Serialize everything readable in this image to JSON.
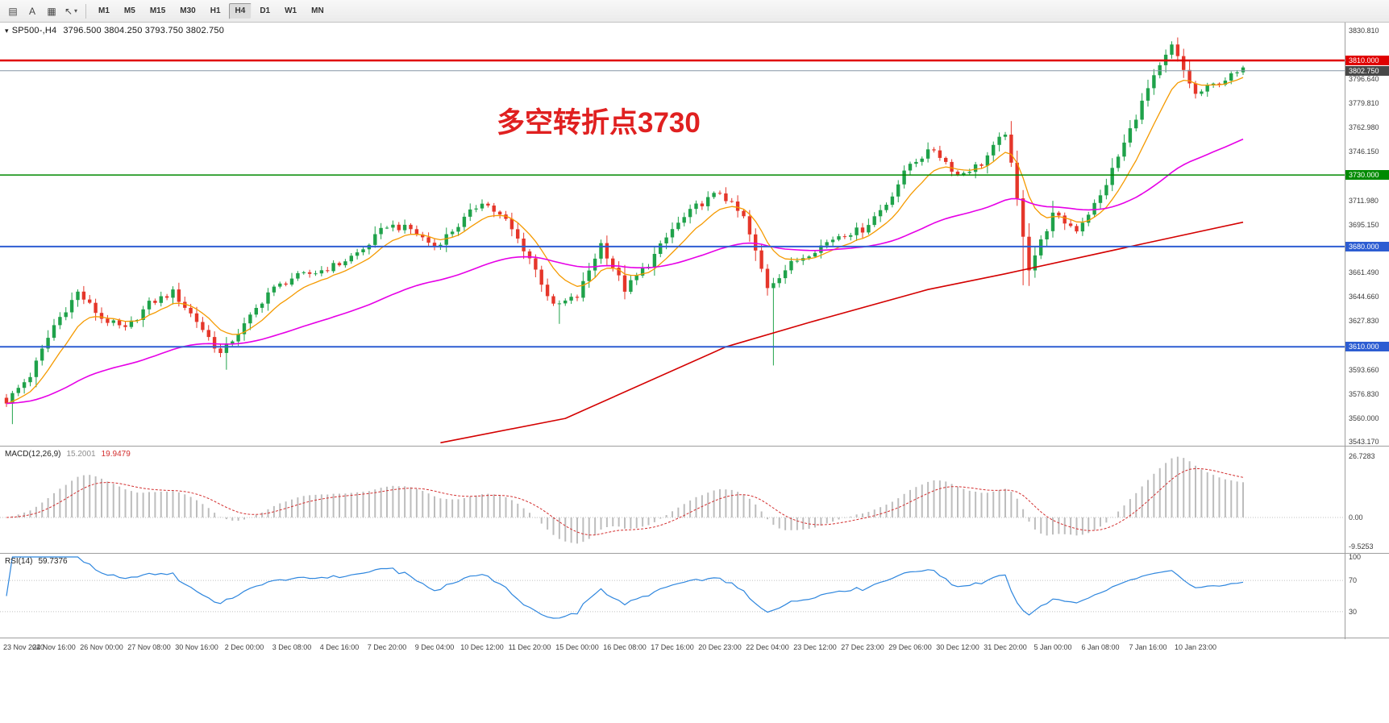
{
  "toolbar": {
    "icons": [
      {
        "name": "chart-list-icon",
        "glyph": "▤"
      },
      {
        "name": "text-tool-icon",
        "glyph": "A"
      },
      {
        "name": "chart-frame-icon",
        "glyph": "▦"
      },
      {
        "name": "cursor-tool-icon",
        "glyph": "↖",
        "caret": "▾"
      }
    ],
    "timeframes": [
      "M1",
      "M5",
      "M15",
      "M30",
      "H1",
      "H4",
      "D1",
      "W1",
      "MN"
    ],
    "active_timeframe": "H4"
  },
  "header": {
    "expander": "▾",
    "symbol": "SP500-,H4",
    "quote": "3796.500 3804.250 3793.750 3802.750"
  },
  "annotation": {
    "text": "多空转折点3730",
    "color": "#e02020"
  },
  "price_axis": {
    "labels": [
      {
        "value": 3830.81,
        "label": "3830.810"
      },
      {
        "value": 3796.64,
        "label": "3796.640"
      },
      {
        "value": 3779.81,
        "label": "3779.810"
      },
      {
        "value": 3762.98,
        "label": "3762.980"
      },
      {
        "value": 3746.15,
        "label": "3746.150"
      },
      {
        "value": 3711.98,
        "label": "3711.980"
      },
      {
        "value": 3695.15,
        "label": "3695.150"
      },
      {
        "value": 3661.49,
        "label": "3661.490"
      },
      {
        "value": 3644.66,
        "label": "3644.660"
      },
      {
        "value": 3627.83,
        "label": "3627.830"
      },
      {
        "value": 3593.66,
        "label": "3593.660"
      },
      {
        "value": 3576.83,
        "label": "3576.830"
      },
      {
        "value": 3560.0,
        "label": "3560.000"
      },
      {
        "value": 3543.17,
        "label": "3543.170"
      }
    ],
    "line_labels": [
      {
        "name": "resistance-line-3810",
        "value": 3810.0,
        "label": "3810.000",
        "bg": "#e00000",
        "line_color": "#e00000",
        "line_width": 2.5
      },
      {
        "name": "current-price-line",
        "value": 3802.75,
        "label": "3802.750",
        "bg": "#484848",
        "line_color": "#8596a6",
        "line_width": 1
      },
      {
        "name": "pivot-line-3730",
        "value": 3730.0,
        "label": "3730.000",
        "bg": "#008a00",
        "line_color": "#008a00",
        "line_width": 1.5
      },
      {
        "name": "support-line-3680",
        "value": 3680.0,
        "label": "3680.000",
        "bg": "#2d5dd2",
        "line_color": "#2d5dd2",
        "line_width": 2
      },
      {
        "name": "support-line-3610",
        "value": 3610.0,
        "label": "3610.000",
        "bg": "#2d5dd2",
        "line_color": "#2d5dd2",
        "line_width": 2
      }
    ]
  },
  "time_axis": {
    "labels": [
      "23 Nov 2020",
      "24 Nov 16:00",
      "26 Nov 00:00",
      "27 Nov 08:00",
      "30 Nov 16:00",
      "2 Dec 00:00",
      "3 Dec 08:00",
      "4 Dec 16:00",
      "7 Dec 20:00",
      "9 Dec 04:00",
      "10 Dec 12:00",
      "11 Dec 20:00",
      "15 Dec 00:00",
      "16 Dec 08:00",
      "17 Dec 16:00",
      "20 Dec 23:00",
      "22 Dec 04:00",
      "23 Dec 12:00",
      "27 Dec 23:00",
      "29 Dec 06:00",
      "30 Dec 12:00",
      "31 Dec 20:00",
      "5 Jan 00:00",
      "6 Jan 08:00",
      "7 Jan 16:00",
      "10 Jan 23:00"
    ]
  },
  "chart_data": {
    "type": "candlestick",
    "symbol": "SP500-",
    "timeframe": "H4",
    "current_bar": {
      "open": 3796.5,
      "high": 3804.25,
      "low": 3793.75,
      "close": 3802.75
    },
    "visible_price_range": [
      3543.17,
      3830.81
    ],
    "bars": 209,
    "waypoint_step": 4,
    "close_waypoints": [
      3572,
      3590,
      3625,
      3648,
      3630,
      3622,
      3640,
      3648,
      3628,
      3605,
      3625,
      3648,
      3658,
      3662,
      3668,
      3678,
      3695,
      3692,
      3680,
      3695,
      3712,
      3698,
      3672,
      3638,
      3645,
      3682,
      3650,
      3668,
      3692,
      3708,
      3718,
      3700,
      3652,
      3668,
      3678,
      3688,
      3692,
      3710,
      3738,
      3748,
      3730,
      3738,
      3760,
      3665,
      3702,
      3692,
      3715,
      3752,
      3790,
      3820,
      3786,
      3795,
      3803
    ],
    "wick_spikes": [
      {
        "bar": 1,
        "low": 3556
      },
      {
        "bar": 37,
        "low": 3594
      },
      {
        "bar": 93,
        "low": 3626
      },
      {
        "bar": 129,
        "low": 3597
      },
      {
        "bar": 171,
        "low": 3653
      },
      {
        "bar": 197,
        "high": 3826
      }
    ],
    "colors": {
      "up": "#1fa24a",
      "down": "#e5362a",
      "background": "#ffffff"
    },
    "moving_averages": [
      {
        "name": "fast",
        "period": 9,
        "color": "#f59a00"
      },
      {
        "name": "mid",
        "period": 55,
        "color": "#e600e6"
      },
      {
        "name": "slow",
        "color": "#d40000",
        "points": [
          [
            73,
            3543
          ],
          [
            94,
            3560
          ],
          [
            121,
            3610
          ],
          [
            135,
            3627
          ],
          [
            155,
            3650
          ],
          [
            168,
            3661
          ],
          [
            189,
            3680
          ],
          [
            208,
            3697
          ]
        ]
      }
    ],
    "indicators": {
      "macd": {
        "label": "MACD(12,26,9)",
        "fast": 12,
        "slow": 26,
        "signal": 9,
        "value_main": "15.2001",
        "value_signal": "19.9479",
        "axis_labels": [
          "26.7283",
          "0.00",
          "-9.5253"
        ],
        "hist_color": "#bdbdbd",
        "signal_color": "#d32f2f"
      },
      "rsi": {
        "label": "RSI(14)",
        "period": 14,
        "value": "59.7376",
        "axis_labels": [
          "100",
          "70",
          "30"
        ],
        "levels": [
          70,
          30
        ],
        "color": "#2e86de"
      }
    }
  }
}
